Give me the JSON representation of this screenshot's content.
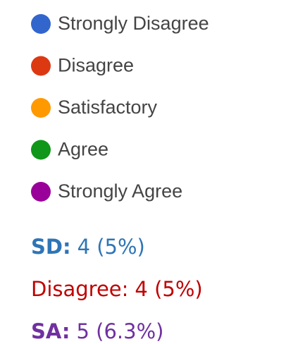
{
  "legend": [
    {
      "label": "Strongly Disagree",
      "color": "#3366cc"
    },
    {
      "label": "Disagree",
      "color": "#dc3912"
    },
    {
      "label": "Satisfactory",
      "color": "#ff9900"
    },
    {
      "label": "Agree",
      "color": "#109618"
    },
    {
      "label": "Strongly Agree",
      "color": "#990099"
    }
  ],
  "annotations": [
    {
      "label": "SD:",
      "text": "4 (5%)",
      "color": "#2e75b6",
      "bold_label": true
    },
    {
      "label": "Disagree:",
      "text": "4 (5%)",
      "color": "#c00000",
      "bold_label": false
    },
    {
      "label": "SA:",
      "text": "5 (6.3%)",
      "color": "#7030a0",
      "bold_label": true
    }
  ]
}
